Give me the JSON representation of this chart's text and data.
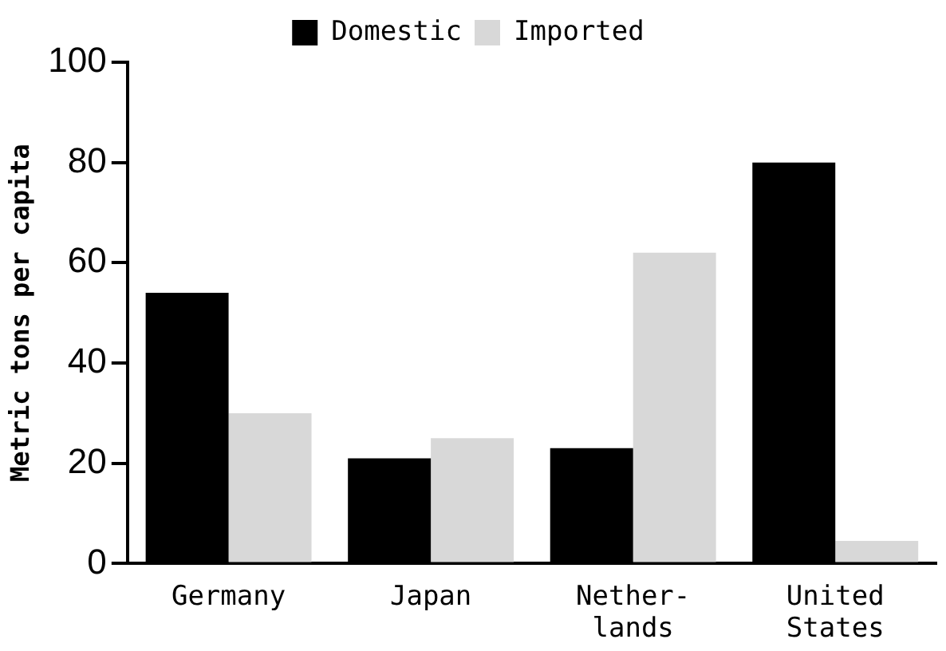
{
  "chart_data": {
    "type": "bar",
    "ylabel": "Metric tons per capita",
    "categories": [
      "Germany",
      "Japan",
      "Nether-\nlands",
      "United\nStates"
    ],
    "series": [
      {
        "name": "Domestic",
        "color": "#000000",
        "values": [
          54,
          21,
          23,
          80
        ]
      },
      {
        "name": "Imported",
        "color": "#d8d8d8",
        "values": [
          30,
          25,
          62,
          4.5
        ]
      }
    ],
    "ylim": [
      0,
      100
    ],
    "yticks": [
      0,
      20,
      40,
      60,
      80,
      100
    ],
    "grid": false,
    "legend": "top"
  }
}
